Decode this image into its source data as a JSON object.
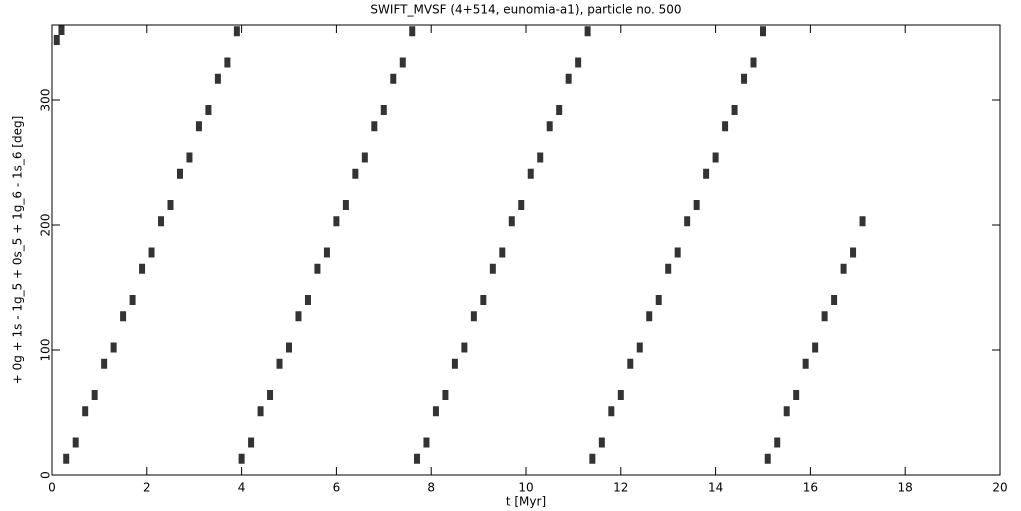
{
  "chart_data": {
    "type": "scatter",
    "title": "SWIFT_MVSF (4+514, eunomia-a1), particle no. 500",
    "x_label": "t [Myr]",
    "y_label": "+ 0g + 1s - 1g_5 + 0s_5 + 1g_6 - 1s_6 [deg]",
    "color": "#000000",
    "xlim": [
      0,
      20
    ],
    "xticks": [
      0,
      2,
      4,
      6,
      8,
      10,
      12,
      14,
      16,
      18,
      20
    ],
    "ylim": [
      0,
      360
    ],
    "yticks": [
      0,
      100,
      200,
      300
    ],
    "x": [
      0.1,
      0.2,
      0.3,
      0.5,
      0.7,
      0.9,
      1.1,
      1.3,
      1.5,
      1.7,
      1.9,
      2.1,
      2.3,
      2.5,
      2.7,
      2.9,
      3.1,
      3.3,
      3.5,
      3.7,
      3.9,
      4.0,
      4.2,
      4.4,
      4.6,
      4.8,
      5.0,
      5.2,
      5.4,
      5.6,
      5.8,
      6.0,
      6.2,
      6.4,
      6.6,
      6.8,
      7.0,
      7.2,
      7.4,
      7.6,
      7.7,
      7.9,
      8.1,
      8.3,
      8.5,
      8.7,
      8.9,
      9.1,
      9.3,
      9.5,
      9.7,
      9.9,
      10.1,
      10.3,
      10.5,
      10.7,
      10.9,
      11.1,
      11.3,
      11.4,
      11.6,
      11.8,
      12.0,
      12.2,
      12.4,
      12.6,
      12.8,
      13.0,
      13.2,
      13.4,
      13.6,
      13.8,
      14.0,
      14.2,
      14.4,
      14.6,
      14.8,
      15.0,
      15.1,
      15.3,
      15.5,
      15.7,
      15.9,
      16.1,
      16.3,
      16.5,
      16.7,
      16.9,
      17.1
    ],
    "y": [
      348,
      356,
      13,
      26,
      51,
      64,
      89,
      102,
      127,
      140,
      165,
      178,
      203,
      216,
      241,
      254,
      279,
      292,
      317,
      330,
      355,
      13,
      26,
      51,
      64,
      89,
      102,
      127,
      140,
      165,
      178,
      203,
      216,
      241,
      254,
      279,
      292,
      317,
      330,
      355,
      13,
      26,
      51,
      64,
      89,
      102,
      127,
      140,
      165,
      178,
      203,
      216,
      241,
      254,
      279,
      292,
      317,
      330,
      355,
      13,
      26,
      51,
      64,
      89,
      102,
      127,
      140,
      165,
      178,
      203,
      216,
      241,
      254,
      279,
      292,
      317,
      330,
      355,
      13,
      26,
      51,
      64,
      89,
      102,
      127,
      140,
      165,
      178,
      203
    ]
  }
}
